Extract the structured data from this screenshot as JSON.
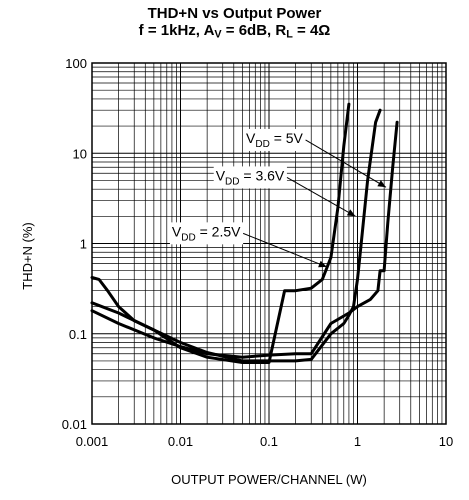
{
  "chart_data": {
    "type": "line",
    "title": "THD+N vs Output Power",
    "subtitle": {
      "f_label": "f = 1kHz",
      "av_symbol": "A",
      "av_sub": "V",
      "av_value": " = 6dB",
      "rl_symbol": "R",
      "rl_sub": "L",
      "rl_value": " = 4Ω"
    },
    "xlabel": "OUTPUT POWER/CHANNEL (W)",
    "ylabel": "THD+N (%)",
    "x_scale": "log",
    "y_scale": "log",
    "xlim": [
      0.001,
      10
    ],
    "ylim": [
      0.01,
      100
    ],
    "x_ticks": [
      "0.001",
      "0.01",
      "0.1",
      "1",
      "10"
    ],
    "y_ticks": [
      "0.01",
      "0.1",
      "1",
      "10",
      "100"
    ],
    "grid": true,
    "series": [
      {
        "label": {
          "main": "V",
          "sub": "DD",
          "value": " = 5V"
        },
        "label_pos": [
          0.055,
          13
        ],
        "arrow_to": [
          2.1,
          4.2
        ],
        "x": [
          0.001,
          0.002,
          0.005,
          0.01,
          0.02,
          0.05,
          0.1,
          0.2,
          0.3,
          0.5,
          0.8,
          1.0,
          1.4,
          1.7,
          1.8,
          2.0,
          2.2,
          2.5,
          2.8
        ],
        "y": [
          0.18,
          0.13,
          0.09,
          0.072,
          0.06,
          0.055,
          0.058,
          0.06,
          0.06,
          0.13,
          0.17,
          0.2,
          0.24,
          0.3,
          0.5,
          0.5,
          1.7,
          7,
          22
        ]
      },
      {
        "label": {
          "main": "V",
          "sub": "DD",
          "value": " = 3.6V"
        },
        "label_pos": [
          0.025,
          5
        ],
        "arrow_to": [
          0.95,
          2.0
        ],
        "x": [
          0.001,
          0.002,
          0.005,
          0.01,
          0.02,
          0.05,
          0.1,
          0.2,
          0.3,
          0.5,
          0.7,
          0.8,
          0.9,
          1.0,
          1.1,
          1.3,
          1.6,
          1.8
        ],
        "y": [
          0.22,
          0.17,
          0.11,
          0.08,
          0.062,
          0.05,
          0.05,
          0.05,
          0.052,
          0.1,
          0.13,
          0.16,
          0.2,
          0.4,
          1.0,
          5,
          22,
          30
        ]
      },
      {
        "label": {
          "main": "V",
          "sub": "DD",
          "value": " = 2.5V"
        },
        "label_pos": [
          0.008,
          1.2
        ],
        "arrow_to": [
          0.45,
          0.55
        ],
        "x": [
          0.001,
          0.0012,
          0.0015,
          0.002,
          0.003,
          0.005,
          0.01,
          0.02,
          0.05,
          0.1,
          0.15,
          0.2,
          0.3,
          0.4,
          0.5,
          0.6,
          0.7,
          0.8
        ],
        "y": [
          0.42,
          0.4,
          0.3,
          0.2,
          0.14,
          0.11,
          0.07,
          0.055,
          0.048,
          0.048,
          0.3,
          0.3,
          0.32,
          0.4,
          0.7,
          2.5,
          12,
          35
        ]
      }
    ]
  }
}
